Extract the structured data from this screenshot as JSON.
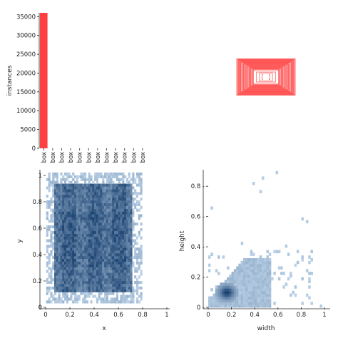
{
  "chart_data": [
    {
      "id": "instances",
      "type": "bar",
      "ylabel": "instances",
      "categories": [
        "box",
        "box",
        "box",
        "box",
        "box",
        "box",
        "box",
        "box",
        "box",
        "box",
        "box",
        "box"
      ],
      "values": [
        36000,
        0,
        0,
        0,
        0,
        0,
        0,
        0,
        0,
        0,
        0,
        0
      ],
      "ylim": [
        0,
        36000
      ],
      "yticks": [
        0,
        5000,
        10000,
        15000,
        20000,
        25000,
        30000,
        35000
      ],
      "color": "#ff4040"
    },
    {
      "id": "box-overlay",
      "type": "scatter",
      "note_shapes": "rectangle-outlines",
      "color": "#ff3333",
      "boxes": [
        [
          0.5,
          0.5,
          0.85,
          0.85
        ],
        [
          0.5,
          0.5,
          0.8,
          0.75
        ],
        [
          0.5,
          0.5,
          0.7,
          0.65
        ],
        [
          0.5,
          0.5,
          0.6,
          0.55
        ],
        [
          0.5,
          0.5,
          0.5,
          0.45
        ],
        [
          0.5,
          0.5,
          0.4,
          0.35
        ],
        [
          0.5,
          0.5,
          0.3,
          0.25
        ],
        [
          0.5,
          0.5,
          0.2,
          0.2
        ],
        [
          0.5,
          0.5,
          0.12,
          0.12
        ]
      ]
    },
    {
      "id": "xy",
      "type": "heatmap",
      "xlabel": "x",
      "ylabel": "y",
      "xlim": [
        0,
        1
      ],
      "ylim": [
        0,
        1
      ],
      "xticks": [
        0.0,
        0.2,
        0.4,
        0.6,
        0.8,
        1.0
      ],
      "yticks": [
        0.0,
        0.2,
        0.4,
        0.6,
        0.8,
        1.0
      ],
      "color": "#1f77b4"
    },
    {
      "id": "wh",
      "type": "heatmap",
      "xlabel": "width",
      "ylabel": "height",
      "xlim": [
        0,
        1
      ],
      "ylim": [
        0,
        0.9
      ],
      "xticks": [
        0.0,
        0.2,
        0.4,
        0.6,
        0.8,
        1.0
      ],
      "yticks": [
        0.0,
        0.2,
        0.4,
        0.6,
        0.8
      ],
      "color": "#1f77b4"
    }
  ]
}
